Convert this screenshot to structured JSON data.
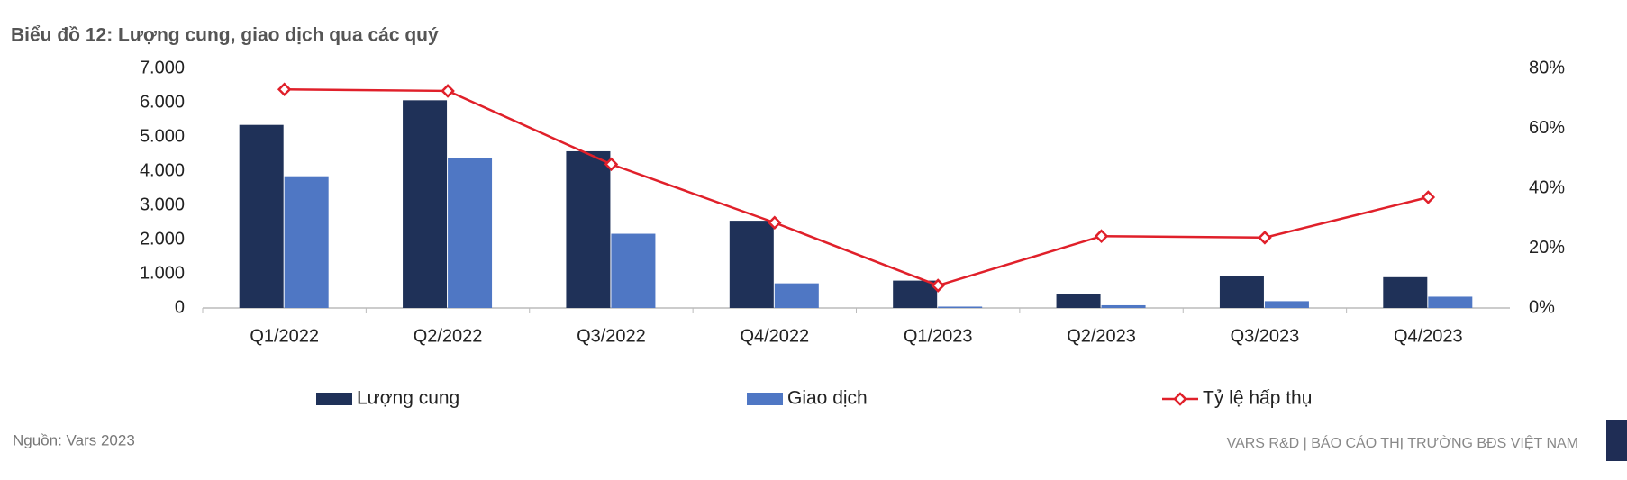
{
  "chart_data": {
    "type": "bar-line",
    "title": "Biểu đồ 12: Lượng cung, giao dịch qua các quý",
    "source": "Nguồn: Vars 2023",
    "footer": "VARS R&D | BÁO CÁO THỊ TRƯỜNG BĐS VIỆT NAM",
    "categories": [
      "Q1/2022",
      "Q2/2022",
      "Q3/2022",
      "Q4/2022",
      "Q1/2023",
      "Q2/2023",
      "Q3/2023",
      "Q4/2023"
    ],
    "series": [
      {
        "name": "Lượng cung",
        "type": "bar",
        "color": "#1f3158",
        "values": [
          5350,
          6070,
          4580,
          2550,
          800,
          420,
          930,
          900
        ]
      },
      {
        "name": "Giao dịch",
        "type": "bar",
        "color": "#4f77c4",
        "values": [
          3850,
          4380,
          2170,
          720,
          40,
          80,
          200,
          330
        ]
      },
      {
        "name": "Tỷ lệ hấp thụ",
        "type": "line",
        "axis": "y2",
        "color": "#e0202a",
        "values": [
          73,
          72.5,
          48,
          28.5,
          7.5,
          24,
          23.5,
          37
        ]
      }
    ],
    "ylim": [
      0,
      7000
    ],
    "yticks": [
      0,
      {
        "value": 1000,
        "label": "1.000"
      },
      {
        "value": 2000,
        "label": "2.000"
      },
      {
        "value": 3000,
        "label": "3.000"
      },
      {
        "value": 4000,
        "label": "4.000"
      },
      {
        "value": 5000,
        "label": "5.000"
      },
      {
        "value": 6000,
        "label": "6.000"
      },
      {
        "value": 7000,
        "label": "7.000"
      }
    ],
    "y2lim": [
      0,
      80
    ],
    "y2ticks": [
      {
        "value": 0,
        "label": "0%"
      },
      {
        "value": 20,
        "label": "20%"
      },
      {
        "value": 40,
        "label": "40%"
      },
      {
        "value": 60,
        "label": "60%"
      },
      {
        "value": 80,
        "label": "80%"
      }
    ],
    "grid": false
  }
}
